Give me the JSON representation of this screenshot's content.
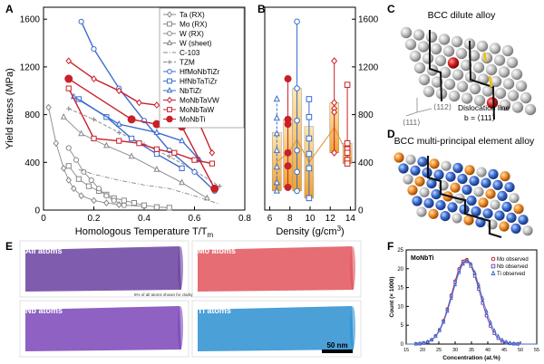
{
  "panels": {
    "A": "A",
    "B": "B",
    "C": "C",
    "D": "D",
    "E": "E",
    "F": "F"
  },
  "chart_data": [
    {
      "panel": "A",
      "type": "line",
      "xlabel": "Homologous Temperature T/T",
      "xlabel_sub": "m",
      "ylabel": "Yield stress (MPa)",
      "xlim": [
        0,
        0.8
      ],
      "ylim": [
        0,
        1700
      ],
      "xticks": [
        "0",
        "0.2",
        "0.4",
        "0.6",
        "0.8"
      ],
      "yticks": [
        "0",
        "400",
        "800",
        "1200",
        "1600"
      ],
      "legend": [
        {
          "name": "Ta (RX)",
          "marker": "diamond",
          "color": "#888888",
          "dash": "solid"
        },
        {
          "name": "Mo (RX)",
          "marker": "square",
          "color": "#888888",
          "dash": "solid"
        },
        {
          "name": "W (RX)",
          "marker": "circle",
          "color": "#888888",
          "dash": "solid"
        },
        {
          "name": "W (sheet)",
          "marker": "triangle",
          "color": "#888888",
          "dash": "solid"
        },
        {
          "name": "C-103",
          "marker": "dash-dot",
          "color": "#888888",
          "dash": "dashdot"
        },
        {
          "name": "TZM",
          "marker": "plus",
          "color": "#888888",
          "dash": "dashed"
        },
        {
          "name": "HfMoNbTiZr",
          "marker": "circle",
          "color": "#3a6ccf",
          "dash": "solid"
        },
        {
          "name": "HfNbTaTiZr",
          "marker": "square",
          "color": "#3a6ccf",
          "dash": "solid"
        },
        {
          "name": "NbTiZr",
          "marker": "triangle",
          "color": "#3a6ccf",
          "dash": "solid"
        },
        {
          "name": "MoNbTaVW",
          "marker": "diamond",
          "color": "#c8202a",
          "dash": "solid"
        },
        {
          "name": "MoNbTaW",
          "marker": "square",
          "color": "#c8202a",
          "dash": "solid"
        },
        {
          "name": "MoNbTi",
          "marker": "circle-filled",
          "color": "#c8202a",
          "dash": "solid"
        }
      ],
      "series": [
        {
          "name": "Ta (RX)",
          "x": [
            0.02,
            0.05,
            0.08,
            0.1,
            0.12,
            0.15,
            0.2,
            0.25,
            0.3,
            0.4
          ],
          "y": [
            860,
            560,
            350,
            250,
            180,
            120,
            80,
            60,
            45,
            30
          ]
        },
        {
          "name": "Mo (RX)",
          "x": [
            0.1,
            0.14,
            0.18,
            0.22,
            0.25,
            0.28,
            0.32,
            0.36,
            0.4,
            0.45,
            0.5
          ],
          "y": [
            370,
            260,
            200,
            160,
            130,
            100,
            80,
            60,
            40,
            25,
            20
          ]
        },
        {
          "name": "W (RX)",
          "x": [
            0.1,
            0.13,
            0.16,
            0.19,
            0.22,
            0.25,
            0.28,
            0.32
          ],
          "y": [
            520,
            420,
            320,
            250,
            180,
            120,
            80,
            40
          ]
        },
        {
          "name": "W (sheet)",
          "x": [
            0.08,
            0.15,
            0.25,
            0.35,
            0.45,
            0.55,
            0.65
          ],
          "y": [
            780,
            640,
            540,
            450,
            340,
            230,
            100
          ]
        },
        {
          "name": "C-103",
          "x": [
            0.14,
            0.2,
            0.3,
            0.4,
            0.5,
            0.6,
            0.7
          ],
          "y": [
            340,
            300,
            250,
            210,
            180,
            120,
            50
          ]
        },
        {
          "name": "TZM",
          "x": [
            0.1,
            0.2,
            0.3,
            0.4,
            0.5,
            0.6,
            0.7
          ],
          "y": [
            850,
            760,
            650,
            550,
            450,
            330,
            200
          ]
        },
        {
          "name": "HfMoNbTiZr",
          "x": [
            0.15,
            0.2,
            0.3,
            0.4,
            0.5,
            0.6,
            0.68
          ],
          "y": [
            1580,
            1350,
            1020,
            750,
            500,
            320,
            160
          ]
        },
        {
          "name": "HfNbTaTiZr",
          "x": [
            0.14,
            0.25,
            0.35,
            0.45,
            0.55
          ],
          "y": [
            930,
            780,
            600,
            470,
            350
          ]
        },
        {
          "name": "NbTiZr",
          "x": [
            0.12,
            0.3,
            0.45,
            0.55,
            0.62
          ],
          "y": [
            950,
            720,
            650,
            580,
            420
          ]
        },
        {
          "name": "MoNbTaVW",
          "x": [
            0.1,
            0.2,
            0.3,
            0.38,
            0.45,
            0.52,
            0.6,
            0.67
          ],
          "y": [
            1250,
            1100,
            1000,
            900,
            880,
            850,
            820,
            480
          ]
        },
        {
          "name": "MoNbTaW",
          "x": [
            0.1,
            0.2,
            0.3,
            0.38,
            0.45,
            0.52,
            0.6,
            0.67
          ],
          "y": [
            1020,
            600,
            580,
            560,
            510,
            480,
            420,
            390
          ]
        },
        {
          "name": "MoNbTi",
          "x": [
            0.1,
            0.35,
            0.45,
            0.55,
            0.68
          ],
          "y": [
            1100,
            760,
            720,
            700,
            180
          ]
        }
      ]
    },
    {
      "panel": "B",
      "type": "scatter",
      "xlabel": "Density (g/cm",
      "xlabel_sup": "3",
      "xlabel_end": ")",
      "xlim": [
        5.5,
        14.5
      ],
      "ylim": [
        0,
        1700
      ],
      "xticks": [
        "6",
        "8",
        "10",
        "12",
        "14"
      ],
      "yticks": [
        "0",
        "400",
        "800",
        "1200",
        "1600"
      ],
      "groups": [
        {
          "name": "NbTiZr",
          "x": 6.7,
          "y": [
            930,
            770,
            640,
            500,
            360,
            230,
            160
          ],
          "low": 160,
          "high": 650,
          "color": "#3a6ccf",
          "marker": "triangle"
        },
        {
          "name": "MoNbTi",
          "x": 7.8,
          "y": [
            1100,
            760,
            720,
            480,
            370,
            190
          ],
          "low": 190,
          "high": 760,
          "color": "#c8202a",
          "marker": "circle-filled"
        },
        {
          "name": "HfMoNbTiZr",
          "x": 8.7,
          "y": [
            1580,
            1020,
            750,
            500,
            320,
            160
          ],
          "low": 160,
          "high": 1020,
          "color": "#3a6ccf",
          "marker": "circle"
        },
        {
          "name": "HfNbTaTiZr",
          "x": 9.9,
          "y": [
            930,
            780,
            600,
            470,
            350,
            100
          ],
          "low": 100,
          "high": 700,
          "color": "#3a6ccf",
          "marker": "square"
        },
        {
          "name": "MoNbTaVW",
          "x": 12.4,
          "y": [
            1250,
            900,
            850,
            820,
            480
          ],
          "low": 480,
          "high": 900,
          "color": "#c8202a",
          "marker": "diamond"
        },
        {
          "name": "MoNbTaW",
          "x": 13.7,
          "y": [
            1050,
            560,
            510,
            480,
            420,
            390
          ],
          "low": 390,
          "high": 560,
          "color": "#c8202a",
          "marker": "square"
        }
      ]
    },
    {
      "panel": "F",
      "type": "line",
      "title": "MoNbTi",
      "xlabel": "Concentration (at.%)",
      "ylabel": "Count (× 1000)",
      "xlim": [
        15,
        55
      ],
      "ylim": [
        0,
        25
      ],
      "xticks": [
        "15",
        "20",
        "25",
        "30",
        "35",
        "40",
        "45",
        "50",
        "55"
      ],
      "yticks": [
        "0",
        "5",
        "10",
        "15",
        "20",
        "25"
      ],
      "legend": [
        {
          "name": "Mo observed",
          "marker": "circle",
          "color": "#c8202a"
        },
        {
          "name": "Nb observed",
          "marker": "square",
          "color": "#7a4fb5"
        },
        {
          "name": "Ti observed",
          "marker": "triangle",
          "color": "#3a6ccf"
        }
      ],
      "series": [
        {
          "name": "Mo observed",
          "mean": 33.3,
          "sd": 4.3,
          "peak": 22.5
        },
        {
          "name": "Nb observed",
          "mean": 33.3,
          "sd": 4.3,
          "peak": 22.0
        },
        {
          "name": "Ti observed",
          "mean": 33.6,
          "sd": 4.4,
          "peak": 22.0
        }
      ]
    }
  ],
  "panelC": {
    "title": "BCC dilute alloy",
    "dir1": "⟨111⟩",
    "dir2": "⟨112⟩",
    "line1": "Dislocation line",
    "line2": "b = ⟨111⟩",
    "colors": {
      "matrix": "#b8b8b8",
      "solute": "#c81e1e",
      "line": "#111111",
      "arrow": "#e8c020"
    }
  },
  "panelD": {
    "title": "BCC multi-principal element alloy",
    "colors": {
      "a": "#f08a28",
      "b": "#3a6ccf",
      "c": "#c8c8c8"
    }
  },
  "panelE": {
    "tiles": [
      {
        "label": "All atoms",
        "color": "#6a3fa0"
      },
      {
        "label": "Mo atoms",
        "color": "#e0535a"
      },
      {
        "label": "Nb atoms",
        "color": "#7a45b8"
      },
      {
        "label": "Ti atoms",
        "color": "#2a8fd0"
      }
    ],
    "note": "5% of all atoms shown for clarity",
    "scalebar": "50 nm"
  }
}
